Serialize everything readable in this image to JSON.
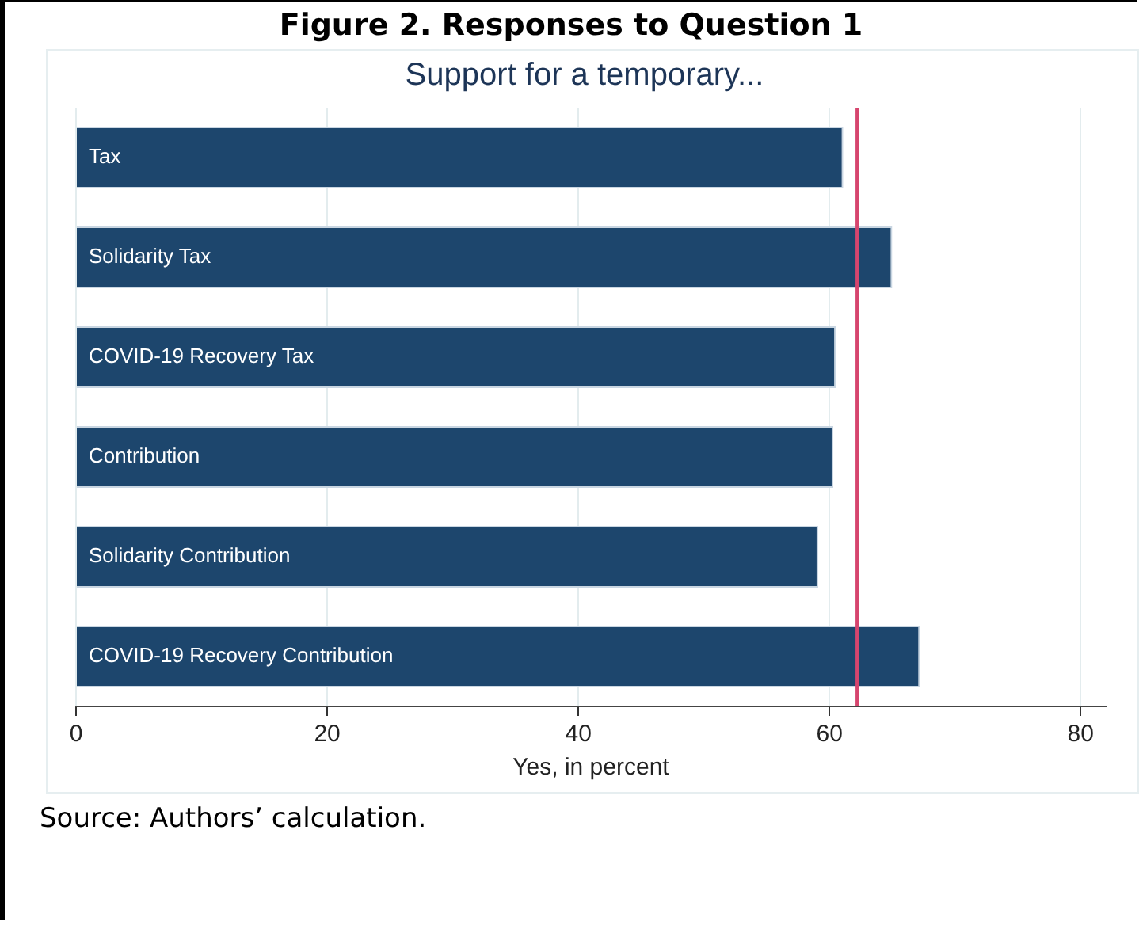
{
  "chart_data": {
    "type": "bar",
    "orientation": "horizontal",
    "title": "Figure 2. Responses to Question 1",
    "subtitle": "Support for a temporary...",
    "xlabel": "Yes, in percent",
    "categories": [
      "Tax",
      "Solidarity Tax",
      "COVID-19 Recovery Tax",
      "Contribution",
      "Solidarity Contribution",
      "COVID-19 Recovery Contribution"
    ],
    "values": [
      61.1,
      65.0,
      60.5,
      60.3,
      59.1,
      67.2
    ],
    "color": "#1d466d",
    "xlim": [
      0,
      82
    ],
    "xticks": [
      0,
      20,
      40,
      60,
      80
    ],
    "grid": "x",
    "ref_lines": [
      {
        "axis": "x",
        "value": 62.2,
        "color": "#d6456e"
      }
    ],
    "annotations": [
      "Source: Authors’ calculation."
    ]
  }
}
